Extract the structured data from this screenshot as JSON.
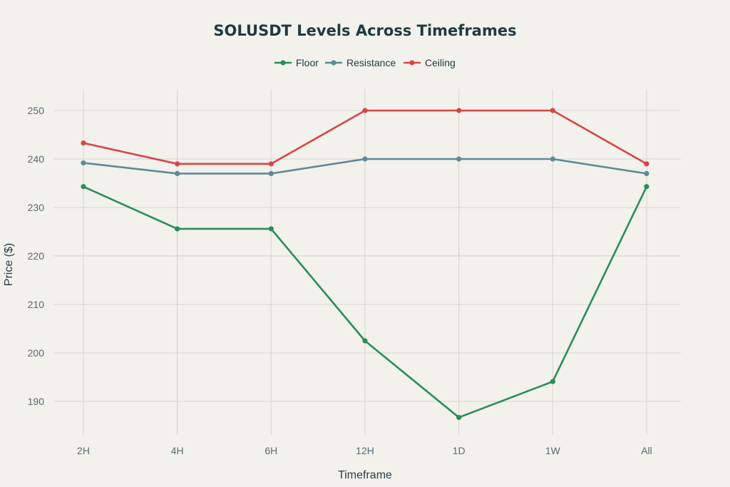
{
  "chart_data": {
    "type": "line",
    "title": "SOLUSDT Levels Across Timeframes",
    "xlabel": "Timeframe",
    "ylabel": "Price ($)",
    "categories": [
      "2H",
      "4H",
      "6H",
      "12H",
      "1D",
      "1W",
      "All"
    ],
    "ylim": [
      181,
      254.5
    ],
    "yticks": [
      190,
      200,
      210,
      220,
      230,
      240,
      250
    ],
    "grid": true,
    "legend_position": "top-center",
    "series": [
      {
        "name": "Floor",
        "color": "#2e8b57",
        "values": [
          234.3,
          225.6,
          225.6,
          202.5,
          186.7,
          194.1,
          234.3
        ]
      },
      {
        "name": "Resistance",
        "color": "#5f8a94",
        "values": [
          239.2,
          237.0,
          237.0,
          240.0,
          240.0,
          240.0,
          237.0
        ]
      },
      {
        "name": "Ceiling",
        "color": "#d94545",
        "values": [
          243.3,
          239.0,
          239.0,
          250.0,
          250.0,
          250.0,
          239.0
        ]
      }
    ]
  }
}
